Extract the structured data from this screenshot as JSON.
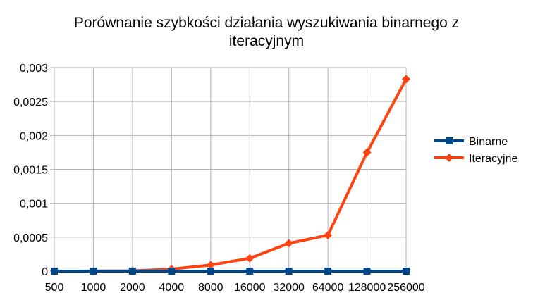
{
  "chart_data": {
    "type": "line",
    "title_line1": "Porównanie szybkości działania wyszukiwania binarnego z",
    "title_line2": "iteracyjnym",
    "categories": [
      "500",
      "1000",
      "2000",
      "4000",
      "8000",
      "16000",
      "32000",
      "64000",
      "128000",
      "256000"
    ],
    "series": [
      {
        "name": "Binarne",
        "color": "#004586",
        "marker": "square",
        "values": [
          0,
          0,
          0,
          0,
          0,
          0,
          0,
          0,
          0,
          0
        ]
      },
      {
        "name": "Iteracyjne",
        "color": "#ff420e",
        "marker": "diamond",
        "values": [
          0,
          2e-06,
          5e-06,
          3e-05,
          9e-05,
          0.00019,
          0.00041,
          0.00053,
          0.00175,
          0.00283
        ]
      }
    ],
    "yticks": [
      "0",
      "0,0005",
      "0,001",
      "0,0015",
      "0,002",
      "0,0025",
      "0,003"
    ],
    "ylim": [
      0,
      0.003
    ],
    "grid": true,
    "legend_position": "right"
  }
}
